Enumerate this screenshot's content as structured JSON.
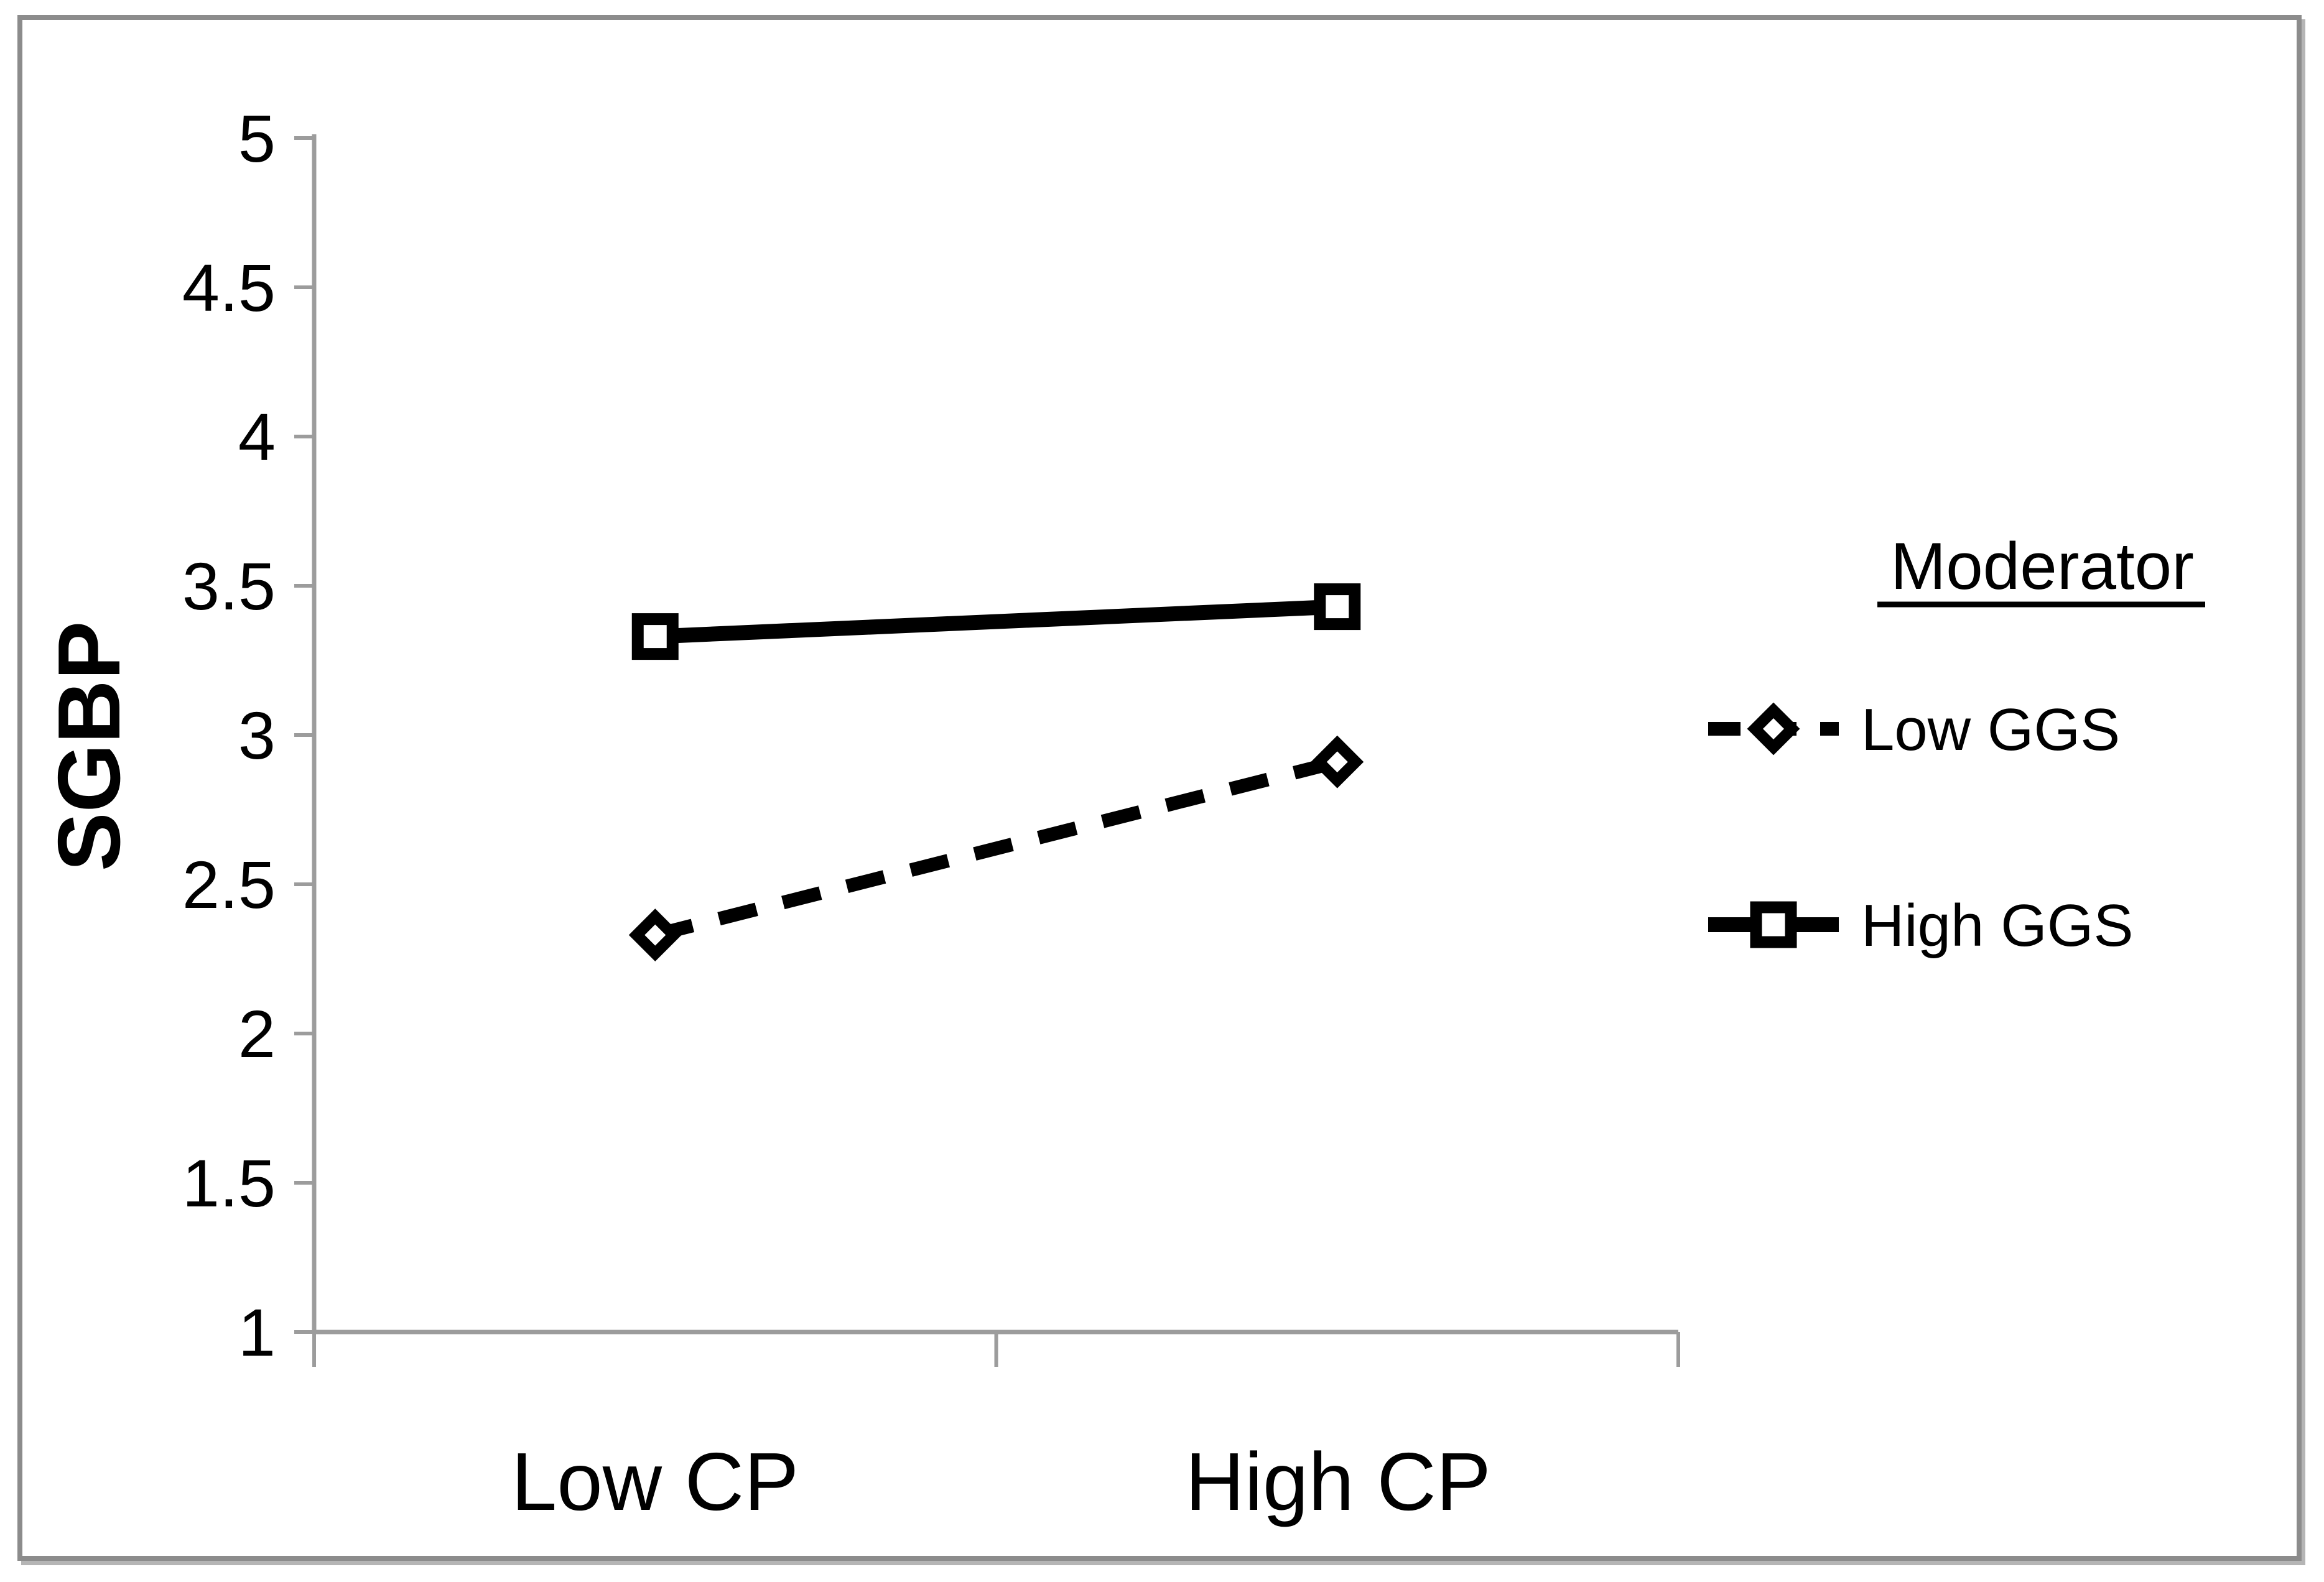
{
  "chart_data": {
    "type": "line",
    "title": "",
    "categories": [
      "Low CP",
      "High CP"
    ],
    "series": [
      {
        "name": "Low GGS",
        "values": [
          2.33,
          2.91
        ],
        "line_style": "dashed",
        "marker": "open-diamond",
        "color": "#000000"
      },
      {
        "name": "High GGS",
        "values": [
          3.33,
          3.43
        ],
        "line_style": "solid",
        "marker": "open-square",
        "color": "#000000"
      }
    ],
    "xlabel": "",
    "ylabel": "SGBP",
    "ylim": [
      1,
      5
    ],
    "ytick_step": 0.5,
    "ytick_labels": [
      "1",
      "1.5",
      "2",
      "2.5",
      "3",
      "3.5",
      "4",
      "4.5",
      "5"
    ],
    "legend": {
      "title": "Moderator",
      "entries": [
        "Low GGS",
        "High GGS"
      ],
      "position": "right-middle"
    },
    "grid": false,
    "axis_color": "#9c9c9c",
    "text_color": "#000000",
    "background": "#ffffff",
    "frame_color": "#8c8c8c"
  }
}
